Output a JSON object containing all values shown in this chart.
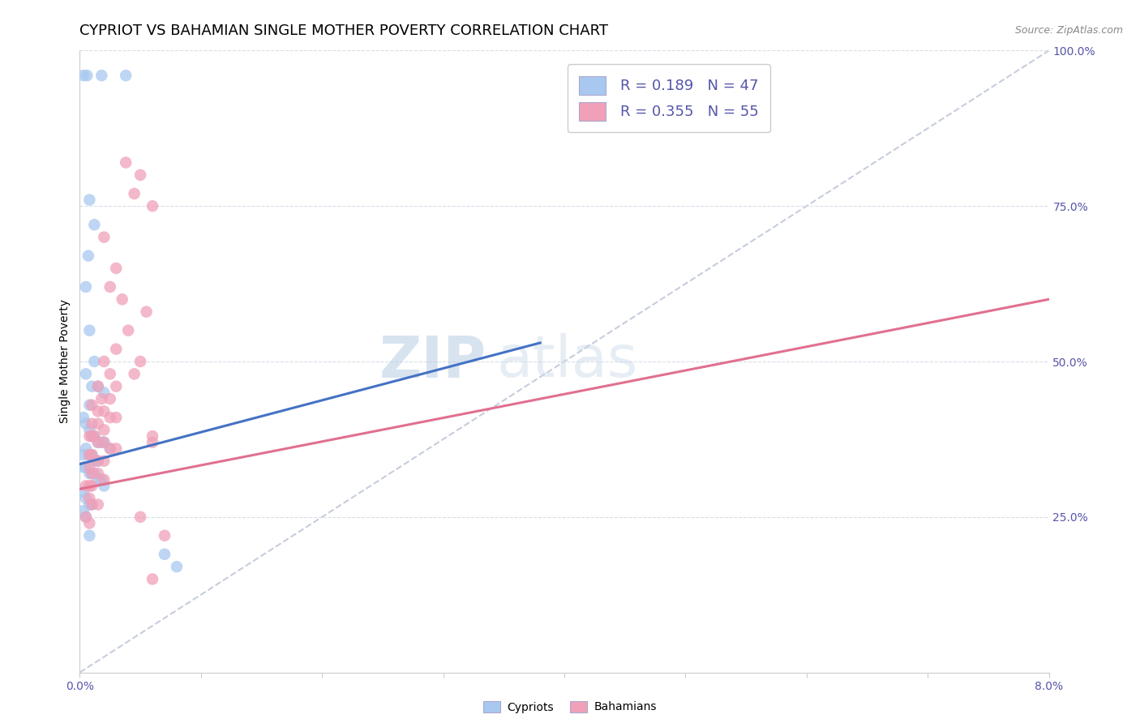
{
  "title": "CYPRIOT VS BAHAMIAN SINGLE MOTHER POVERTY CORRELATION CHART",
  "source_text": "Source: ZipAtlas.com",
  "ylabel": "Single Mother Poverty",
  "xlim": [
    0.0,
    0.08
  ],
  "ylim": [
    0.0,
    1.0
  ],
  "xticks": [
    0.0,
    0.01,
    0.02,
    0.03,
    0.04,
    0.05,
    0.06,
    0.07,
    0.08
  ],
  "xticklabels": [
    "0.0%",
    "",
    "",
    "",
    "",
    "",
    "",
    "",
    "8.0%"
  ],
  "yticks": [
    0.25,
    0.5,
    0.75,
    1.0
  ],
  "yticklabels": [
    "25.0%",
    "50.0%",
    "75.0%",
    "100.0%"
  ],
  "cypriot_color": "#a8c8f0",
  "bahamian_color": "#f0a0b8",
  "cypriot_line_color": "#4472c4",
  "bahamian_line_color": "#e07090",
  "ref_line_color": "#c0c8d8",
  "legend_R1": "R = 0.189",
  "legend_N1": "N = 47",
  "legend_R2": "R = 0.355",
  "legend_N2": "N = 55",
  "legend_label1": "Cypriots",
  "legend_label2": "Bahamians",
  "watermark_zip": "ZIP",
  "watermark_atlas": "atlas",
  "axis_color": "#5555aa",
  "grid_color": "#d8dde8",
  "background_color": "#ffffff",
  "title_fontsize": 13,
  "axis_label_fontsize": 10,
  "tick_fontsize": 10,
  "legend_fontsize": 13,
  "cypriot_scatter": [
    [
      0.0003,
      0.96
    ],
    [
      0.0006,
      0.96
    ],
    [
      0.0018,
      0.96
    ],
    [
      0.0038,
      0.96
    ],
    [
      0.0008,
      0.76
    ],
    [
      0.0012,
      0.72
    ],
    [
      0.0007,
      0.67
    ],
    [
      0.0005,
      0.62
    ],
    [
      0.0008,
      0.55
    ],
    [
      0.0012,
      0.5
    ],
    [
      0.0005,
      0.48
    ],
    [
      0.001,
      0.46
    ],
    [
      0.0015,
      0.46
    ],
    [
      0.002,
      0.45
    ],
    [
      0.0008,
      0.43
    ],
    [
      0.0003,
      0.41
    ],
    [
      0.0005,
      0.4
    ],
    [
      0.0008,
      0.39
    ],
    [
      0.001,
      0.38
    ],
    [
      0.0012,
      0.38
    ],
    [
      0.0015,
      0.37
    ],
    [
      0.0018,
      0.37
    ],
    [
      0.002,
      0.37
    ],
    [
      0.0025,
      0.36
    ],
    [
      0.0005,
      0.36
    ],
    [
      0.0003,
      0.35
    ],
    [
      0.0007,
      0.35
    ],
    [
      0.001,
      0.35
    ],
    [
      0.0012,
      0.34
    ],
    [
      0.0015,
      0.34
    ],
    [
      0.0003,
      0.33
    ],
    [
      0.0005,
      0.33
    ],
    [
      0.0008,
      0.32
    ],
    [
      0.001,
      0.32
    ],
    [
      0.0012,
      0.32
    ],
    [
      0.0015,
      0.31
    ],
    [
      0.0018,
      0.31
    ],
    [
      0.002,
      0.3
    ],
    [
      0.0003,
      0.29
    ],
    [
      0.0005,
      0.28
    ],
    [
      0.0008,
      0.27
    ],
    [
      0.001,
      0.27
    ],
    [
      0.0003,
      0.26
    ],
    [
      0.0005,
      0.25
    ],
    [
      0.0008,
      0.22
    ],
    [
      0.007,
      0.19
    ],
    [
      0.008,
      0.17
    ]
  ],
  "bahamian_scatter": [
    [
      0.0038,
      0.82
    ],
    [
      0.002,
      0.7
    ],
    [
      0.003,
      0.65
    ],
    [
      0.005,
      0.8
    ],
    [
      0.006,
      0.75
    ],
    [
      0.0045,
      0.77
    ],
    [
      0.0025,
      0.62
    ],
    [
      0.0035,
      0.6
    ],
    [
      0.0055,
      0.58
    ],
    [
      0.004,
      0.55
    ],
    [
      0.003,
      0.52
    ],
    [
      0.005,
      0.5
    ],
    [
      0.002,
      0.5
    ],
    [
      0.0045,
      0.48
    ],
    [
      0.0025,
      0.48
    ],
    [
      0.0015,
      0.46
    ],
    [
      0.003,
      0.46
    ],
    [
      0.0018,
      0.44
    ],
    [
      0.0025,
      0.44
    ],
    [
      0.001,
      0.43
    ],
    [
      0.0015,
      0.42
    ],
    [
      0.002,
      0.42
    ],
    [
      0.0025,
      0.41
    ],
    [
      0.003,
      0.41
    ],
    [
      0.001,
      0.4
    ],
    [
      0.0015,
      0.4
    ],
    [
      0.002,
      0.39
    ],
    [
      0.0008,
      0.38
    ],
    [
      0.001,
      0.38
    ],
    [
      0.0012,
      0.38
    ],
    [
      0.0015,
      0.37
    ],
    [
      0.002,
      0.37
    ],
    [
      0.0025,
      0.36
    ],
    [
      0.003,
      0.36
    ],
    [
      0.0008,
      0.35
    ],
    [
      0.001,
      0.35
    ],
    [
      0.0015,
      0.34
    ],
    [
      0.002,
      0.34
    ],
    [
      0.0008,
      0.33
    ],
    [
      0.001,
      0.32
    ],
    [
      0.0015,
      0.32
    ],
    [
      0.002,
      0.31
    ],
    [
      0.0005,
      0.3
    ],
    [
      0.0008,
      0.3
    ],
    [
      0.001,
      0.3
    ],
    [
      0.0008,
      0.28
    ],
    [
      0.001,
      0.27
    ],
    [
      0.0015,
      0.27
    ],
    [
      0.0005,
      0.25
    ],
    [
      0.0008,
      0.24
    ],
    [
      0.006,
      0.38
    ],
    [
      0.006,
      0.37
    ],
    [
      0.007,
      0.22
    ],
    [
      0.006,
      0.15
    ],
    [
      0.005,
      0.25
    ]
  ],
  "cypriot_line_x": [
    0.0,
    0.038
  ],
  "cypriot_line_y": [
    0.335,
    0.53
  ],
  "bahamian_line_x": [
    0.0,
    0.08
  ],
  "bahamian_line_y": [
    0.295,
    0.6
  ],
  "ref_line_x": [
    0.0,
    0.08
  ],
  "ref_line_y": [
    0.0,
    1.0
  ]
}
